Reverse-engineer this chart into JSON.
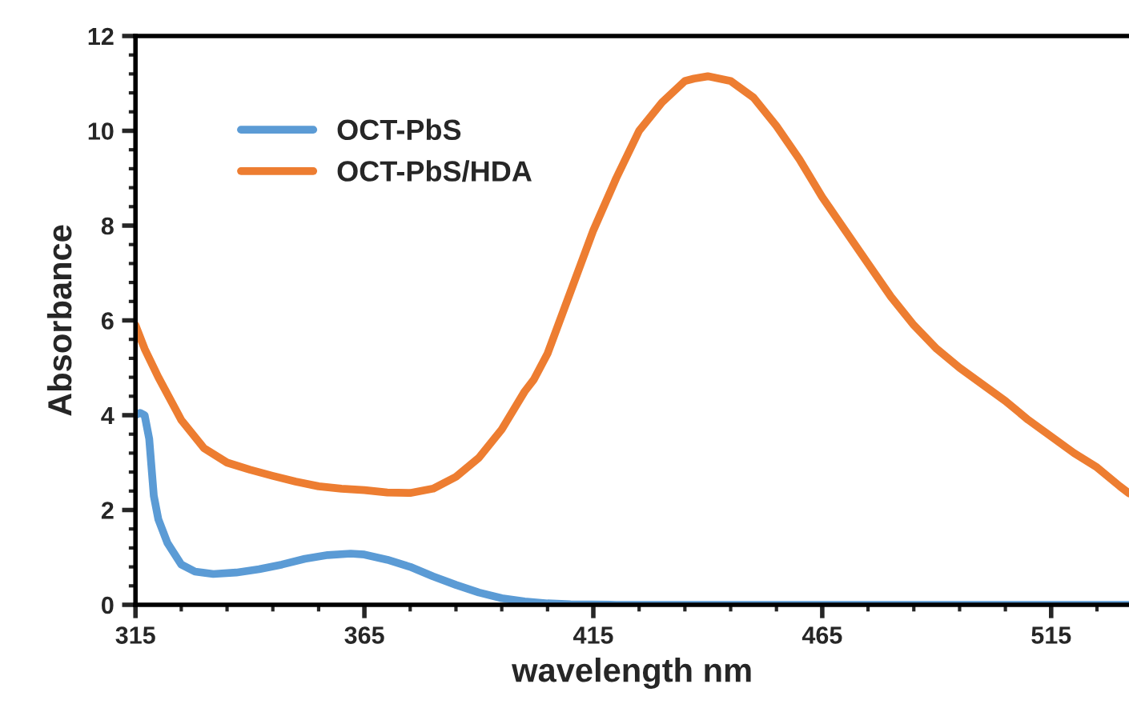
{
  "chart_data": {
    "type": "line",
    "xlabel": "wavelength nm",
    "ylabel": "Absorbance",
    "xlim": [
      315,
      532
    ],
    "xticks": [
      315,
      365,
      415,
      465,
      515
    ],
    "ylim": [
      0,
      12
    ],
    "yticks": [
      0,
      2,
      4,
      6,
      8,
      10,
      12
    ],
    "grid": false,
    "legend": "top left",
    "marker": "none",
    "line_style": "solid",
    "series": [
      {
        "name": "OCT-PbS",
        "color": "#5b9bd5",
        "x": [
          315,
          316,
          317,
          318,
          319,
          320,
          322,
          325,
          328,
          332,
          337,
          342,
          347,
          352,
          357,
          362,
          365,
          370,
          375,
          380,
          385,
          390,
          395,
          400,
          405,
          410,
          420,
          532
        ],
        "values": [
          4.0,
          4.05,
          4.0,
          3.5,
          2.3,
          1.8,
          1.3,
          0.85,
          0.7,
          0.65,
          0.68,
          0.75,
          0.85,
          0.97,
          1.05,
          1.08,
          1.06,
          0.95,
          0.8,
          0.6,
          0.42,
          0.26,
          0.14,
          0.07,
          0.03,
          0.01,
          0,
          0
        ]
      },
      {
        "name": "OCT-PbS/HDA",
        "color": "#ed7d31",
        "x": [
          315,
          317,
          320,
          325,
          330,
          335,
          340,
          345,
          350,
          355,
          360,
          365,
          370,
          375,
          380,
          385,
          390,
          395,
          400,
          402,
          405,
          410,
          415,
          420,
          425,
          430,
          435,
          437,
          440,
          445,
          450,
          455,
          460,
          465,
          470,
          475,
          480,
          485,
          490,
          495,
          500,
          505,
          510,
          515,
          520,
          525,
          530,
          532
        ],
        "values": [
          5.9,
          5.4,
          4.8,
          3.9,
          3.3,
          3.0,
          2.85,
          2.72,
          2.6,
          2.5,
          2.45,
          2.42,
          2.37,
          2.36,
          2.45,
          2.7,
          3.1,
          3.7,
          4.5,
          4.75,
          5.3,
          6.6,
          7.9,
          9.0,
          10.0,
          10.6,
          11.05,
          11.1,
          11.15,
          11.05,
          10.7,
          10.1,
          9.4,
          8.6,
          7.9,
          7.2,
          6.5,
          5.9,
          5.4,
          5.0,
          4.65,
          4.3,
          3.9,
          3.55,
          3.2,
          2.9,
          2.5,
          2.35
        ]
      }
    ]
  }
}
